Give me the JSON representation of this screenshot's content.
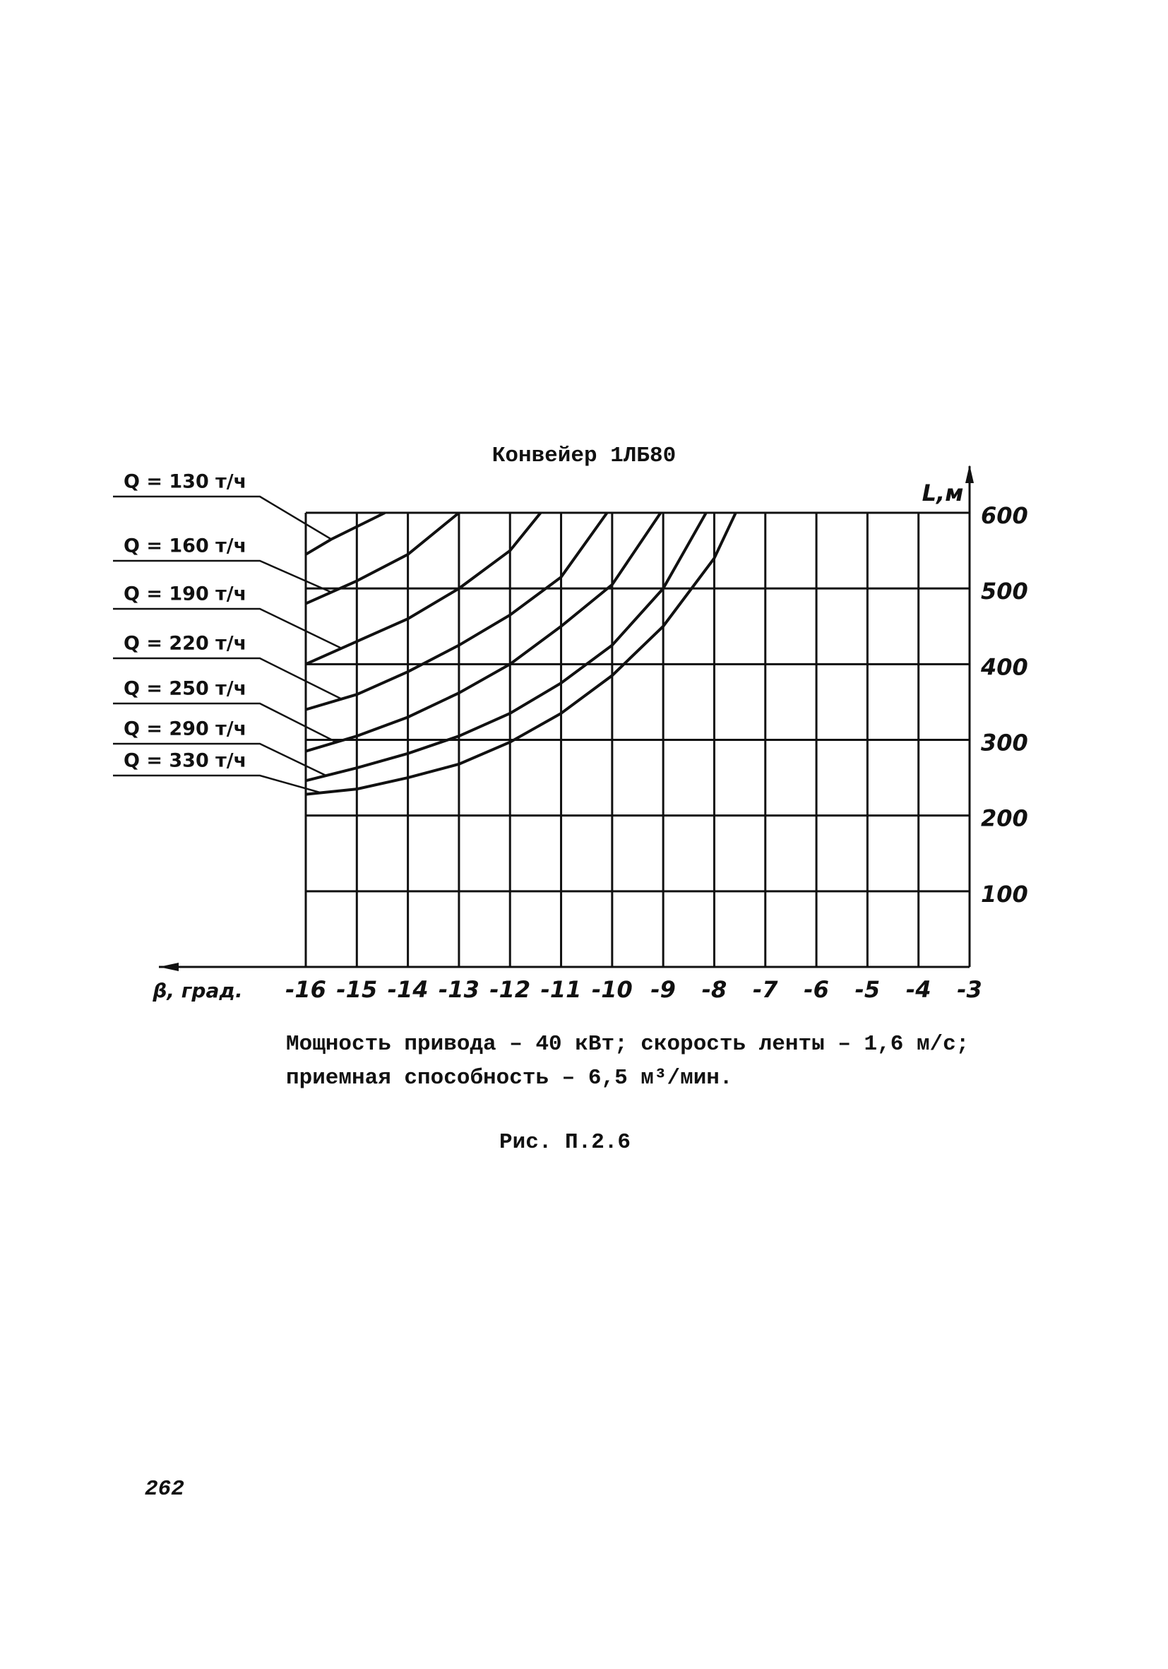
{
  "chart_data": {
    "type": "line",
    "title": "Конвейер 1ЛБ80",
    "xlabel": "β, град.",
    "ylabel": "L,м",
    "xlim": [
      -16,
      -3
    ],
    "xticks": [
      -16,
      -15,
      -14,
      -13,
      -12,
      -11,
      -10,
      -9,
      -8,
      -7,
      -6,
      -5,
      -4,
      -3
    ],
    "ylim": [
      0,
      600
    ],
    "yticks": [
      100,
      200,
      300,
      400,
      500,
      600
    ],
    "grid": true,
    "series": [
      {
        "name": "Q = 130 т/ч",
        "color": "#111111",
        "x": [
          -16,
          -15.5,
          -14.45
        ],
        "values": [
          545,
          565,
          600
        ]
      },
      {
        "name": "Q = 160 т/ч",
        "color": "#111111",
        "x": [
          -16,
          -15,
          -14,
          -13
        ],
        "values": [
          480,
          510,
          545,
          600
        ]
      },
      {
        "name": "Q = 190 т/ч",
        "color": "#111111",
        "x": [
          -16,
          -15,
          -14,
          -13,
          -12,
          -11.4
        ],
        "values": [
          400,
          430,
          460,
          500,
          550,
          600
        ]
      },
      {
        "name": "Q = 220 т/ч",
        "color": "#111111",
        "x": [
          -16,
          -15,
          -14,
          -13,
          -12,
          -11,
          -10.1
        ],
        "values": [
          340,
          360,
          390,
          425,
          465,
          515,
          600
        ]
      },
      {
        "name": "Q = 250 т/ч",
        "color": "#111111",
        "x": [
          -16,
          -15,
          -14,
          -13,
          -12,
          -11,
          -10,
          -9.05
        ],
        "values": [
          285,
          305,
          330,
          362,
          400,
          450,
          505,
          600
        ]
      },
      {
        "name": "Q = 290 т/ч",
        "color": "#111111",
        "x": [
          -16,
          -15,
          -14,
          -13,
          -12,
          -11,
          -10,
          -9,
          -8.16
        ],
        "values": [
          246,
          263,
          282,
          305,
          335,
          375,
          425,
          500,
          600
        ]
      },
      {
        "name": "Q = 330 т/ч",
        "color": "#111111",
        "x": [
          -16,
          -15,
          -14,
          -13,
          -12,
          -11,
          -10,
          -9,
          -8,
          -7.58
        ],
        "values": [
          228,
          235,
          250,
          268,
          297,
          335,
          385,
          450,
          540,
          600
        ]
      }
    ]
  },
  "caption": {
    "line1": "Мощность привода – 40 кВт; скорость ленты – 1,6 м/с;",
    "line2": "приемная способность – 6,5 м³/мин."
  },
  "figure_label": "Рис. П.2.6",
  "page_number": "262"
}
